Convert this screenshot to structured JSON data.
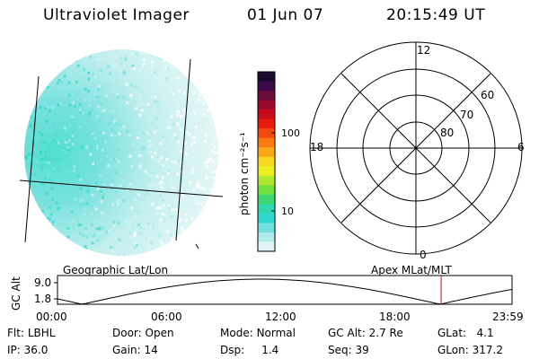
{
  "header": {
    "instrument": "Ultraviolet Imager",
    "date": "01 Jun 07",
    "time": "20:15:49 UT"
  },
  "colorbar": {
    "unit_label": "photon cm⁻²s⁻¹",
    "ticks": [
      "100",
      "10"
    ],
    "colors": [
      "#1a0a2e",
      "#3a0a4a",
      "#6a0a3a",
      "#9a0a2a",
      "#c80a1a",
      "#e81a10",
      "#f04a10",
      "#f87a10",
      "#f8a818",
      "#f8d820",
      "#e8f020",
      "#b0e830",
      "#70e040",
      "#40d870",
      "#30d8b0",
      "#30d8d0",
      "#70e0e0",
      "#b0eaea",
      "#dff4f4"
    ]
  },
  "left_panel": {
    "label": "Geographic Lat/Lon"
  },
  "polar_plot": {
    "label": "Apex MLat/MLT",
    "mlt_labels": {
      "top": "12",
      "right": "6",
      "bottom": "0",
      "left": "18"
    },
    "lat_labels": [
      "60",
      "70",
      "80"
    ]
  },
  "timeline": {
    "ylabel": "GC Alt",
    "y_ticks": [
      "9.0",
      "1.8"
    ],
    "x_ticks": [
      "00:00",
      "06:00",
      "12:00",
      "18:00",
      "23:59"
    ],
    "current_marker_hours": 20.26,
    "marker_color": "#e00000"
  },
  "meta": {
    "row1": [
      {
        "label": "Flt:",
        "value": "LBHL"
      },
      {
        "label": "Door:",
        "value": "Open"
      },
      {
        "label": "Mode:",
        "value": "Normal"
      },
      {
        "label": "GC Alt:",
        "value": "2.7 Re"
      },
      {
        "label": "GLat:",
        "value": "4.1"
      }
    ],
    "row2": [
      {
        "label": "IP:",
        "value": "36.0"
      },
      {
        "label": "Gain:",
        "value": "14"
      },
      {
        "label": "Dsp:",
        "value": "1.4"
      },
      {
        "label": "Seq:",
        "value": "39"
      },
      {
        "label": "GLon:",
        "value": "317.2"
      }
    ]
  }
}
